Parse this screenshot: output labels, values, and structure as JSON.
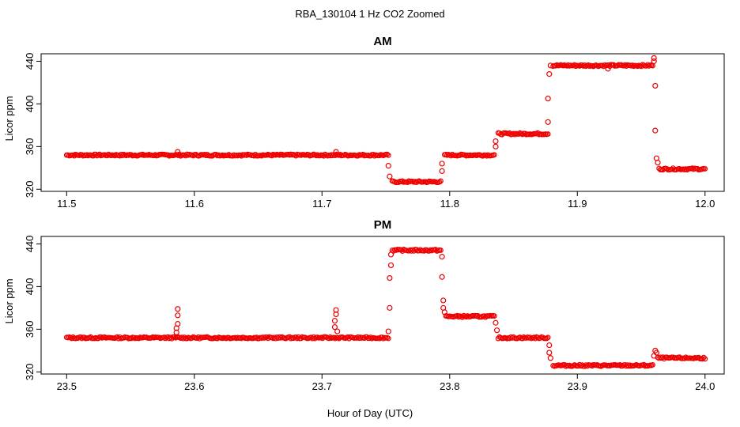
{
  "figure": {
    "title": "RBA_130104  1 Hz CO2 Zoomed",
    "xlabel": "Hour of Day (UTC)"
  },
  "chart_data": [
    {
      "type": "scatter",
      "title": "AM",
      "xlabel": "Hour of Day (UTC)",
      "ylabel": "Licor ppm",
      "xlim": [
        11.48,
        12.015
      ],
      "ylim": [
        318,
        447
      ],
      "xticks": [
        11.5,
        11.6,
        11.7,
        11.8,
        11.9,
        12.0
      ],
      "xtick_labels": [
        "11.5",
        "11.6",
        "11.7",
        "11.8",
        "11.9",
        "12.0"
      ],
      "yticks": [
        320,
        360,
        400,
        440
      ],
      "ytick_labels": [
        "320",
        "360",
        "400",
        "440"
      ],
      "grid": false,
      "legend": "none",
      "color": "#ee0000",
      "marker": "open-circle",
      "segments": [
        {
          "x": [
            11.5,
            11.752
          ],
          "y": 352
        },
        {
          "x": [
            11.755,
            11.793
          ],
          "y": 327
        },
        {
          "x": [
            11.796,
            11.835
          ],
          "y": 352
        },
        {
          "x": [
            11.838,
            11.877
          ],
          "y": 372
        },
        {
          "x": [
            11.881,
            11.959
          ],
          "y": 436
        },
        {
          "x": [
            11.964,
            12.0
          ],
          "y": 339
        }
      ],
      "points": [
        {
          "x": 11.587,
          "y": 355
        },
        {
          "x": 11.711,
          "y": 355
        },
        {
          "x": 11.752,
          "y": 342
        },
        {
          "x": 11.753,
          "y": 332
        },
        {
          "x": 11.794,
          "y": 337
        },
        {
          "x": 11.794,
          "y": 344
        },
        {
          "x": 11.836,
          "y": 360
        },
        {
          "x": 11.836,
          "y": 365
        },
        {
          "x": 11.877,
          "y": 383
        },
        {
          "x": 11.877,
          "y": 405
        },
        {
          "x": 11.878,
          "y": 428
        },
        {
          "x": 11.879,
          "y": 436
        },
        {
          "x": 11.96,
          "y": 443
        },
        {
          "x": 11.96,
          "y": 440
        },
        {
          "x": 11.961,
          "y": 417
        },
        {
          "x": 11.961,
          "y": 375
        },
        {
          "x": 11.962,
          "y": 349
        },
        {
          "x": 11.963,
          "y": 345
        },
        {
          "x": 11.924,
          "y": 433
        }
      ]
    },
    {
      "type": "scatter",
      "title": "PM",
      "xlabel": "Hour of Day (UTC)",
      "ylabel": "Licor ppm",
      "xlim": [
        23.48,
        24.015
      ],
      "ylim": [
        318,
        447
      ],
      "xticks": [
        23.5,
        23.6,
        23.7,
        23.8,
        23.9,
        24.0
      ],
      "xtick_labels": [
        "23.5",
        "23.6",
        "23.7",
        "23.8",
        "23.9",
        "24.0"
      ],
      "yticks": [
        320,
        360,
        400,
        440
      ],
      "ytick_labels": [
        "320",
        "360",
        "400",
        "440"
      ],
      "grid": false,
      "legend": "none",
      "color": "#ee0000",
      "marker": "open-circle",
      "segments": [
        {
          "x": [
            23.5,
            23.752
          ],
          "y": 352
        },
        {
          "x": [
            23.755,
            23.793
          ],
          "y": 434
        },
        {
          "x": [
            23.797,
            23.835
          ],
          "y": 372
        },
        {
          "x": [
            23.838,
            23.877
          ],
          "y": 352
        },
        {
          "x": [
            23.881,
            23.959
          ],
          "y": 326
        },
        {
          "x": [
            23.963,
            24.0
          ],
          "y": 333
        }
      ],
      "points": [
        {
          "x": 23.587,
          "y": 379
        },
        {
          "x": 23.587,
          "y": 373
        },
        {
          "x": 23.587,
          "y": 365
        },
        {
          "x": 23.586,
          "y": 361
        },
        {
          "x": 23.586,
          "y": 357
        },
        {
          "x": 23.711,
          "y": 378
        },
        {
          "x": 23.711,
          "y": 374
        },
        {
          "x": 23.71,
          "y": 368
        },
        {
          "x": 23.71,
          "y": 362
        },
        {
          "x": 23.712,
          "y": 358
        },
        {
          "x": 23.752,
          "y": 358
        },
        {
          "x": 23.753,
          "y": 380
        },
        {
          "x": 23.753,
          "y": 408
        },
        {
          "x": 23.754,
          "y": 420
        },
        {
          "x": 23.754,
          "y": 430
        },
        {
          "x": 23.794,
          "y": 428
        },
        {
          "x": 23.794,
          "y": 409
        },
        {
          "x": 23.795,
          "y": 387
        },
        {
          "x": 23.795,
          "y": 380
        },
        {
          "x": 23.796,
          "y": 376
        },
        {
          "x": 23.836,
          "y": 366
        },
        {
          "x": 23.837,
          "y": 359
        },
        {
          "x": 23.878,
          "y": 345
        },
        {
          "x": 23.878,
          "y": 338
        },
        {
          "x": 23.879,
          "y": 333
        },
        {
          "x": 23.96,
          "y": 335
        },
        {
          "x": 23.961,
          "y": 340
        },
        {
          "x": 23.962,
          "y": 338
        }
      ]
    }
  ]
}
